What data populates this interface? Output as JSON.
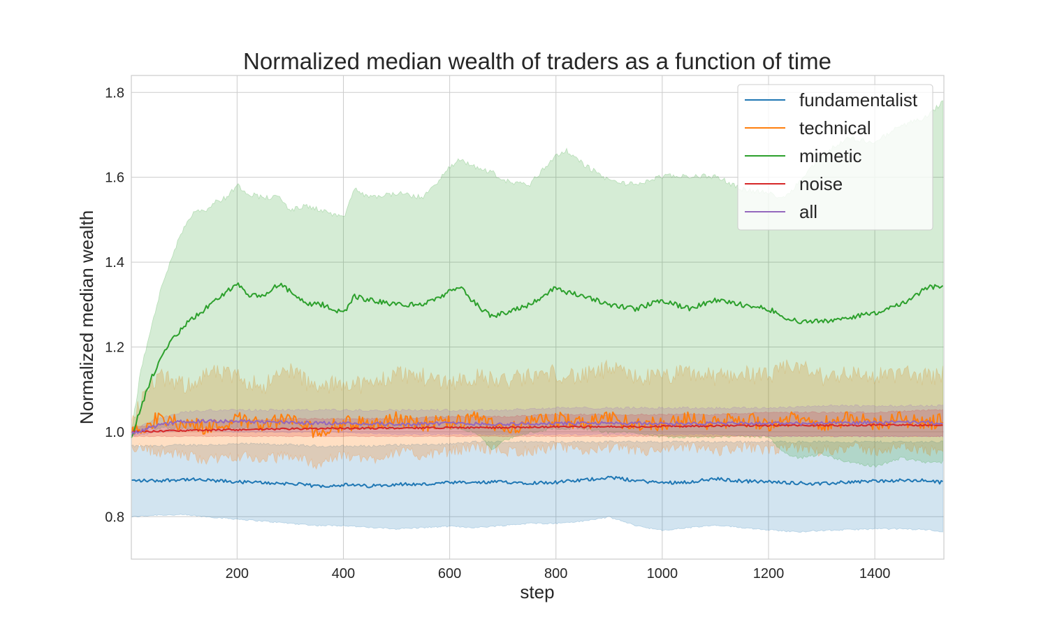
{
  "chart_data": {
    "type": "line",
    "title": "Normalized median wealth of traders as a function of time",
    "xlabel": "step",
    "ylabel": "Normalized median wealth",
    "xlim": [
      1,
      1530
    ],
    "ylim": [
      0.7,
      1.84
    ],
    "xticks": [
      200,
      400,
      600,
      800,
      1000,
      1200,
      1400
    ],
    "yticks": [
      0.8,
      1.0,
      1.2,
      1.4,
      1.6,
      1.8
    ],
    "xtick_labels": [
      "200",
      "400",
      "600",
      "800",
      "1000",
      "1200",
      "1400"
    ],
    "ytick_labels": [
      "0.8",
      "1.0",
      "1.2",
      "1.4",
      "1.6",
      "1.8"
    ],
    "grid": true,
    "legend_position": "top-right",
    "series": [
      {
        "name": "fundamentalist",
        "color": "#1f77b4",
        "x": [
          1,
          50,
          100,
          150,
          200,
          250,
          300,
          350,
          400,
          450,
          500,
          550,
          600,
          650,
          700,
          750,
          800,
          850,
          900,
          950,
          1000,
          1050,
          1100,
          1150,
          1200,
          1250,
          1300,
          1350,
          1400,
          1450,
          1500,
          1530
        ],
        "median": [
          0.885,
          0.885,
          0.888,
          0.885,
          0.882,
          0.88,
          0.878,
          0.872,
          0.875,
          0.872,
          0.877,
          0.876,
          0.88,
          0.88,
          0.882,
          0.88,
          0.881,
          0.886,
          0.893,
          0.885,
          0.88,
          0.882,
          0.889,
          0.884,
          0.882,
          0.88,
          0.877,
          0.882,
          0.884,
          0.885,
          0.885,
          0.88
        ],
        "lower": [
          0.8,
          0.805,
          0.805,
          0.8,
          0.795,
          0.79,
          0.785,
          0.78,
          0.78,
          0.775,
          0.772,
          0.775,
          0.778,
          0.775,
          0.78,
          0.785,
          0.785,
          0.79,
          0.8,
          0.78,
          0.768,
          0.775,
          0.78,
          0.775,
          0.77,
          0.765,
          0.768,
          0.77,
          0.772,
          0.772,
          0.77,
          0.765
        ],
        "upper": [
          0.965,
          0.965,
          0.968,
          0.968,
          0.97,
          0.97,
          0.968,
          0.965,
          0.965,
          0.965,
          0.968,
          0.968,
          0.97,
          0.975,
          0.975,
          0.975,
          0.975,
          0.975,
          0.975,
          0.975,
          0.975,
          0.975,
          0.975,
          0.975,
          0.975,
          0.975,
          0.975,
          0.975,
          0.975,
          0.975,
          0.975,
          0.975
        ]
      },
      {
        "name": "technical",
        "color": "#ff7f0e",
        "x": [
          1,
          50,
          100,
          150,
          200,
          250,
          300,
          350,
          400,
          450,
          500,
          550,
          600,
          650,
          700,
          750,
          800,
          850,
          900,
          950,
          1000,
          1050,
          1100,
          1150,
          1200,
          1250,
          1300,
          1350,
          1400,
          1450,
          1500,
          1530
        ],
        "median": [
          1.0,
          1.03,
          1.02,
          1.01,
          1.03,
          1.02,
          1.03,
          1.0,
          1.02,
          1.02,
          1.03,
          1.02,
          1.02,
          1.03,
          1.01,
          1.02,
          1.03,
          1.02,
          1.03,
          1.02,
          1.02,
          1.03,
          1.02,
          1.03,
          1.02,
          1.03,
          1.02,
          1.03,
          1.02,
          1.03,
          1.02,
          1.03
        ],
        "lower": [
          0.97,
          0.96,
          0.95,
          0.94,
          0.95,
          0.94,
          0.95,
          0.93,
          0.95,
          0.94,
          0.96,
          0.95,
          0.96,
          0.97,
          0.96,
          0.96,
          0.97,
          0.96,
          0.97,
          0.96,
          0.96,
          0.97,
          0.96,
          0.97,
          0.96,
          0.97,
          0.96,
          0.97,
          0.96,
          0.97,
          0.96,
          0.97
        ],
        "upper": [
          1.03,
          1.12,
          1.1,
          1.13,
          1.12,
          1.1,
          1.14,
          1.09,
          1.11,
          1.1,
          1.13,
          1.12,
          1.11,
          1.12,
          1.11,
          1.12,
          1.13,
          1.12,
          1.14,
          1.12,
          1.12,
          1.13,
          1.12,
          1.13,
          1.12,
          1.15,
          1.12,
          1.13,
          1.12,
          1.13,
          1.12,
          1.13
        ]
      },
      {
        "name": "mimetic",
        "color": "#2ca02c",
        "x": [
          1,
          20,
          40,
          60,
          80,
          100,
          120,
          140,
          160,
          180,
          200,
          220,
          250,
          280,
          300,
          330,
          360,
          400,
          420,
          450,
          500,
          550,
          600,
          620,
          650,
          680,
          700,
          750,
          800,
          820,
          850,
          900,
          950,
          1000,
          1050,
          1100,
          1150,
          1200,
          1230,
          1260,
          1300,
          1350,
          1400,
          1450,
          1500,
          1530
        ],
        "median": [
          0.99,
          1.06,
          1.13,
          1.18,
          1.22,
          1.25,
          1.27,
          1.29,
          1.31,
          1.33,
          1.35,
          1.32,
          1.32,
          1.35,
          1.33,
          1.3,
          1.3,
          1.28,
          1.32,
          1.31,
          1.3,
          1.3,
          1.33,
          1.34,
          1.3,
          1.27,
          1.28,
          1.3,
          1.34,
          1.33,
          1.32,
          1.3,
          1.29,
          1.31,
          1.29,
          1.31,
          1.3,
          1.29,
          1.27,
          1.26,
          1.26,
          1.27,
          1.28,
          1.3,
          1.34,
          1.345
        ],
        "lower": [
          0.99,
          1.01,
          1.01,
          1.01,
          1.01,
          1.01,
          1.01,
          1.01,
          1.01,
          1.01,
          1.01,
          1.01,
          1.01,
          1.01,
          1.01,
          1.01,
          1.01,
          1.01,
          1.01,
          1.01,
          1.01,
          1.01,
          1.01,
          1.01,
          1.0,
          0.96,
          0.98,
          1.0,
          1.01,
          1.01,
          1.01,
          1.0,
          1.0,
          0.99,
          0.99,
          0.99,
          0.99,
          0.99,
          0.95,
          0.94,
          0.95,
          0.93,
          0.92,
          0.94,
          0.93,
          0.93
        ],
        "upper": [
          1.0,
          1.15,
          1.25,
          1.35,
          1.42,
          1.48,
          1.52,
          1.52,
          1.54,
          1.55,
          1.58,
          1.56,
          1.55,
          1.55,
          1.52,
          1.53,
          1.52,
          1.5,
          1.57,
          1.55,
          1.56,
          1.55,
          1.62,
          1.64,
          1.62,
          1.61,
          1.59,
          1.58,
          1.65,
          1.66,
          1.63,
          1.59,
          1.58,
          1.6,
          1.6,
          1.6,
          1.57,
          1.56,
          1.55,
          1.59,
          1.65,
          1.69,
          1.68,
          1.72,
          1.74,
          1.78
        ]
      },
      {
        "name": "noise",
        "color": "#d62728",
        "x": [
          1,
          100,
          200,
          300,
          400,
          500,
          600,
          700,
          800,
          900,
          1000,
          1100,
          1200,
          1300,
          1400,
          1500,
          1530
        ],
        "median": [
          1.0,
          1.003,
          1.005,
          1.007,
          1.008,
          1.009,
          1.01,
          1.01,
          1.012,
          1.012,
          1.013,
          1.014,
          1.015,
          1.015,
          1.016,
          1.016,
          1.017
        ],
        "lower": [
          0.99,
          0.99,
          0.99,
          0.99,
          0.99,
          0.99,
          0.99,
          0.99,
          0.99,
          0.99,
          0.99,
          0.99,
          0.99,
          0.99,
          0.99,
          0.99,
          0.99
        ],
        "upper": [
          1.01,
          1.02,
          1.025,
          1.03,
          1.03,
          1.03,
          1.035,
          1.035,
          1.04,
          1.04,
          1.04,
          1.04,
          1.045,
          1.045,
          1.045,
          1.05,
          1.05
        ]
      },
      {
        "name": "all",
        "color": "#9467bd",
        "x": [
          1,
          50,
          100,
          150,
          200,
          300,
          400,
          500,
          600,
          700,
          800,
          900,
          1000,
          1100,
          1200,
          1300,
          1400,
          1500,
          1530
        ],
        "median": [
          0.995,
          1.015,
          1.025,
          1.025,
          1.025,
          1.022,
          1.02,
          1.018,
          1.02,
          1.018,
          1.02,
          1.02,
          1.02,
          1.02,
          1.02,
          1.02,
          1.022,
          1.022,
          1.02
        ],
        "lower": [
          0.99,
          1.0,
          1.005,
          1.005,
          1.0,
          1.0,
          1.0,
          0.995,
          0.995,
          0.995,
          0.995,
          0.995,
          0.995,
          0.995,
          0.99,
          0.99,
          0.99,
          0.99,
          0.99
        ],
        "upper": [
          1.0,
          1.03,
          1.045,
          1.05,
          1.05,
          1.05,
          1.05,
          1.05,
          1.05,
          1.05,
          1.055,
          1.055,
          1.055,
          1.055,
          1.055,
          1.06,
          1.06,
          1.06,
          1.06
        ]
      }
    ]
  }
}
